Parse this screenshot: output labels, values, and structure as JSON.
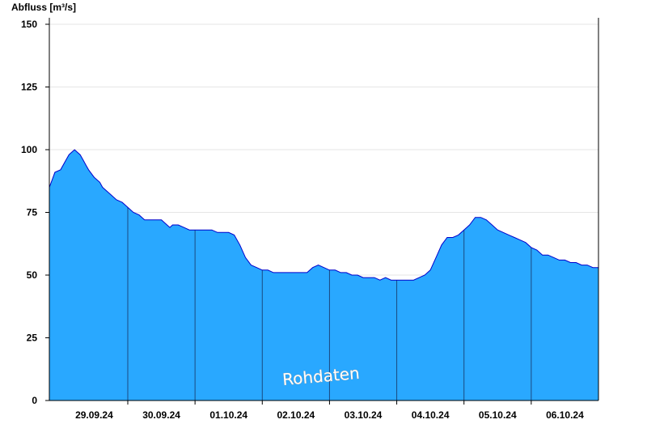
{
  "chart_data": {
    "type": "area",
    "ylabel": "Abfluss [m³/s]",
    "ylim": [
      0,
      150
    ],
    "yticks": [
      0,
      25,
      50,
      75,
      100,
      125,
      150
    ],
    "xlim": [
      "28.09.24 20:00",
      "07.10.24 00:00"
    ],
    "day_labels": [
      "29.09.24",
      "30.09.24",
      "01.10.24",
      "02.10.24",
      "03.10.24",
      "04.10.24",
      "05.10.24",
      "06.10.24"
    ],
    "grid": true,
    "watermark": "Rohdaten",
    "colors": {
      "fill": "#29a8ff",
      "line": "#0000cc",
      "day_lines": "#1a4a80",
      "grid": "#e6e6e6"
    },
    "series": [
      {
        "x": [
          "28.09.24 20:00",
          "28.09.24 21:00",
          "28.09.24 22:00",
          "29.09.24 00:00",
          "29.09.24 02:00",
          "29.09.24 03:00",
          "29.09.24 04:00",
          "29.09.24 05:00",
          "29.09.24 06:00",
          "29.09.24 07:00",
          "29.09.24 08:00",
          "29.09.24 09:00",
          "29.09.24 10:00",
          "29.09.24 12:00",
          "29.09.24 14:00",
          "29.09.24 15:00",
          "29.09.24 16:00",
          "29.09.24 18:00",
          "29.09.24 20:00",
          "29.09.24 22:00",
          "30.09.24 00:00",
          "30.09.24 02:00",
          "30.09.24 04:00",
          "30.09.24 06:00",
          "30.09.24 08:00",
          "30.09.24 10:00",
          "30.09.24 12:00",
          "30.09.24 14:00",
          "30.09.24 15:00",
          "30.09.24 16:00",
          "30.09.24 18:00",
          "30.09.24 20:00",
          "30.09.24 22:00",
          "01.10.24 00:00",
          "01.10.24 02:00",
          "01.10.24 04:00",
          "01.10.24 06:00",
          "01.10.24 08:00",
          "01.10.24 10:00",
          "01.10.24 11:00",
          "01.10.24 12:00",
          "01.10.24 14:00",
          "01.10.24 16:00",
          "01.10.24 18:00",
          "01.10.24 20:00",
          "01.10.24 22:00",
          "02.10.24 00:00",
          "02.10.24 02:00",
          "02.10.24 04:00",
          "02.10.24 06:00",
          "02.10.24 08:00",
          "02.10.24 10:00",
          "02.10.24 12:00",
          "02.10.24 14:00",
          "02.10.24 16:00",
          "02.10.24 18:00",
          "02.10.24 20:00",
          "02.10.24 22:00",
          "03.10.24 00:00",
          "03.10.24 02:00",
          "03.10.24 04:00",
          "03.10.24 06:00",
          "03.10.24 08:00",
          "03.10.24 10:00",
          "03.10.24 12:00",
          "03.10.24 14:00",
          "03.10.24 16:00",
          "03.10.24 18:00",
          "03.10.24 20:00",
          "03.10.24 22:00",
          "04.10.24 00:00",
          "04.10.24 02:00",
          "04.10.24 04:00",
          "04.10.24 06:00",
          "04.10.24 08:00",
          "04.10.24 10:00",
          "04.10.24 12:00",
          "04.10.24 14:00",
          "04.10.24 16:00",
          "04.10.24 18:00",
          "04.10.24 20:00",
          "04.10.24 22:00",
          "05.10.24 00:00",
          "05.10.24 02:00",
          "05.10.24 04:00",
          "05.10.24 06:00",
          "05.10.24 08:00",
          "05.10.24 10:00",
          "05.10.24 12:00",
          "05.10.24 14:00",
          "05.10.24 16:00",
          "05.10.24 18:00",
          "05.10.24 20:00",
          "05.10.24 22:00",
          "06.10.24 00:00",
          "06.10.24 02:00",
          "06.10.24 04:00",
          "06.10.24 06:00",
          "06.10.24 08:00",
          "06.10.24 10:00",
          "06.10.24 12:00",
          "06.10.24 14:00",
          "06.10.24 16:00",
          "06.10.24 18:00",
          "06.10.24 20:00",
          "06.10.24 22:00",
          "07.10.24 00:00"
        ],
        "y": [
          85,
          88,
          91,
          92,
          96,
          98,
          99,
          100,
          99,
          98,
          96,
          94,
          92,
          89,
          87,
          85,
          84,
          82,
          80,
          79,
          77,
          75,
          74,
          72,
          72,
          72,
          72,
          70,
          69,
          70,
          70,
          69,
          68,
          68,
          68,
          68,
          68,
          67,
          67,
          67,
          67,
          66,
          62,
          57,
          54,
          53,
          52,
          52,
          51,
          51,
          51,
          51,
          51,
          51,
          51,
          53,
          54,
          53,
          52,
          52,
          51,
          51,
          50,
          50,
          49,
          49,
          49,
          48,
          49,
          48,
          48,
          48,
          48,
          48,
          49,
          50,
          52,
          57,
          62,
          65,
          65,
          66,
          68,
          70,
          73,
          73,
          72,
          70,
          68,
          67,
          66,
          65,
          64,
          63,
          61,
          60,
          58,
          58,
          57,
          56,
          56,
          55,
          55,
          54,
          54,
          53,
          53
        ]
      }
    ]
  }
}
